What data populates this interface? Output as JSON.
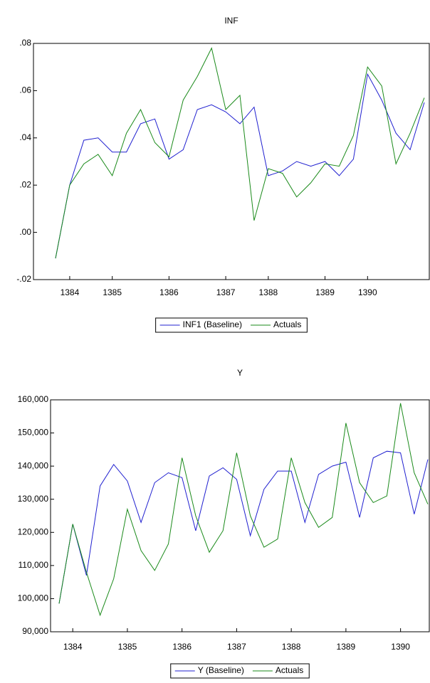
{
  "chart_data": [
    {
      "type": "line",
      "title": "INF",
      "categories": [
        null,
        "1384",
        null,
        null,
        "1385",
        null,
        null,
        null,
        "1386",
        null,
        null,
        null,
        "1387",
        null,
        null,
        "1388",
        null,
        null,
        null,
        "1389",
        null,
        null,
        "1390",
        null,
        null,
        null,
        null
      ],
      "series": [
        {
          "name": "INF1 (Baseline)",
          "color": "#2020d0",
          "values": [
            -0.011,
            0.02,
            0.039,
            0.04,
            0.034,
            0.034,
            0.046,
            0.048,
            0.031,
            0.035,
            0.052,
            0.054,
            0.051,
            0.046,
            0.053,
            0.024,
            0.026,
            0.03,
            0.028,
            0.03,
            0.024,
            0.031,
            0.067,
            0.056,
            0.042,
            0.035,
            0.055
          ]
        },
        {
          "name": "Actuals",
          "color": "#1a8a1a",
          "values": [
            -0.011,
            0.02,
            0.029,
            0.033,
            0.024,
            0.042,
            0.052,
            0.038,
            0.032,
            0.056,
            0.066,
            0.078,
            0.052,
            0.058,
            0.005,
            0.027,
            0.025,
            0.015,
            0.021,
            0.029,
            0.028,
            0.041,
            0.07,
            0.062,
            0.029,
            0.042,
            0.057
          ]
        }
      ],
      "ylim": [
        -0.02,
        0.08
      ],
      "yticks": [
        {
          "value": -0.02,
          "label": "-.02"
        },
        {
          "value": 0,
          "label": ".00"
        },
        {
          "value": 0.02,
          "label": ".02"
        },
        {
          "value": 0.04,
          "label": ".04"
        },
        {
          "value": 0.06,
          "label": ".06"
        },
        {
          "value": 0.08,
          "label": ".08"
        }
      ],
      "legend": "bottom"
    },
    {
      "type": "line",
      "title": "Y",
      "categories": [
        null,
        "1384",
        null,
        null,
        null,
        "1385",
        null,
        null,
        null,
        "1386",
        null,
        null,
        null,
        "1387",
        null,
        null,
        null,
        "1388",
        null,
        null,
        null,
        "1389",
        null,
        null,
        null,
        "1390",
        null,
        null
      ],
      "series": [
        {
          "name": "Y (Baseline)",
          "color": "#2020d0",
          "values": [
            98500,
            122500,
            107000,
            134000,
            140500,
            135500,
            123000,
            135000,
            138000,
            136500,
            120500,
            137000,
            139500,
            136000,
            119000,
            133000,
            138500,
            138500,
            123000,
            137500,
            140000,
            141200,
            124500,
            142500,
            144500,
            144000,
            125500,
            142000
          ]
        },
        {
          "name": "Actuals",
          "color": "#1a8a1a",
          "values": [
            98500,
            122500,
            108000,
            95000,
            106000,
            127000,
            114500,
            108500,
            116500,
            142500,
            125000,
            114000,
            120500,
            144000,
            125000,
            115500,
            118000,
            142500,
            129000,
            121500,
            124500,
            153000,
            135000,
            129000,
            131000,
            159000,
            138000,
            128500
          ]
        }
      ],
      "ylim": [
        90000,
        160000
      ],
      "yticks": [
        {
          "value": 90000,
          "label": "90,000"
        },
        {
          "value": 100000,
          "label": "100,000"
        },
        {
          "value": 110000,
          "label": "110,000"
        },
        {
          "value": 120000,
          "label": "120,000"
        },
        {
          "value": 130000,
          "label": "130,000"
        },
        {
          "value": 140000,
          "label": "140,000"
        },
        {
          "value": 150000,
          "label": "150,000"
        },
        {
          "value": 160000,
          "label": "160,000"
        }
      ],
      "legend": "bottom"
    }
  ]
}
